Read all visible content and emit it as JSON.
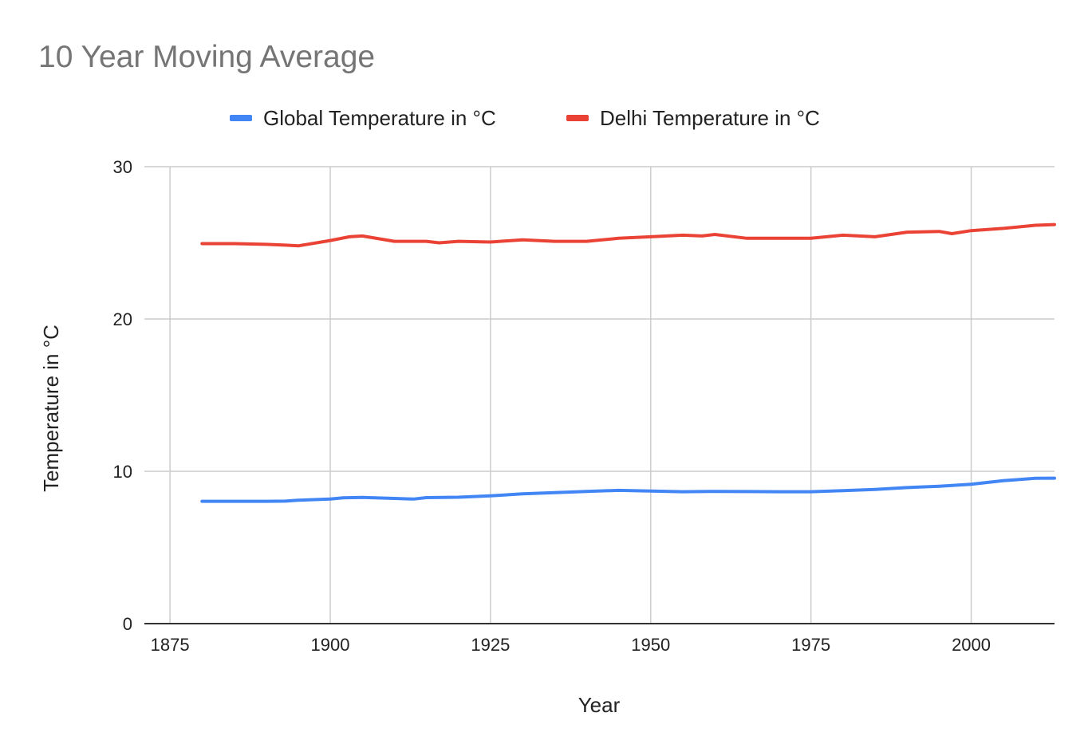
{
  "title": "10 Year Moving Average",
  "legend": {
    "items": [
      {
        "label": "Global Temperature in °C",
        "color": "#4285f4"
      },
      {
        "label": "Delhi Temperature in °C",
        "color": "#ea4335"
      }
    ]
  },
  "chart_data": {
    "type": "line",
    "title": "10 Year Moving Average",
    "xlabel": "Year",
    "ylabel": "Temperature in °C",
    "xlim": [
      1871,
      2013
    ],
    "ylim": [
      0,
      30
    ],
    "xticks": [
      1875,
      1900,
      1925,
      1950,
      1975,
      2000
    ],
    "yticks": [
      0,
      10,
      20,
      30
    ],
    "grid": true,
    "legend_position": "top",
    "series": [
      {
        "name": "Global Temperature in °C",
        "color": "#4285f4",
        "x": [
          1880,
          1885,
          1890,
          1893,
          1895,
          1900,
          1902,
          1905,
          1910,
          1913,
          1915,
          1920,
          1925,
          1930,
          1935,
          1940,
          1945,
          1950,
          1955,
          1960,
          1965,
          1970,
          1975,
          1980,
          1985,
          1990,
          1995,
          2000,
          2005,
          2010,
          2013
        ],
        "y": [
          8.03,
          8.03,
          8.03,
          8.04,
          8.1,
          8.18,
          8.26,
          8.29,
          8.22,
          8.18,
          8.27,
          8.3,
          8.39,
          8.52,
          8.6,
          8.68,
          8.75,
          8.7,
          8.66,
          8.68,
          8.67,
          8.66,
          8.66,
          8.73,
          8.81,
          8.93,
          9.02,
          9.15,
          9.38,
          9.54,
          9.55
        ]
      },
      {
        "name": "Delhi Temperature in °C",
        "color": "#ea4335",
        "x": [
          1880,
          1885,
          1890,
          1893,
          1895,
          1900,
          1903,
          1905,
          1910,
          1915,
          1917,
          1920,
          1925,
          1930,
          1935,
          1940,
          1945,
          1950,
          1955,
          1958,
          1960,
          1965,
          1970,
          1975,
          1980,
          1985,
          1990,
          1995,
          1997,
          2000,
          2005,
          2010,
          2013
        ],
        "y": [
          24.95,
          24.95,
          24.9,
          24.85,
          24.8,
          25.15,
          25.4,
          25.45,
          25.1,
          25.1,
          25.0,
          25.1,
          25.05,
          25.2,
          25.1,
          25.1,
          25.3,
          25.4,
          25.5,
          25.45,
          25.55,
          25.3,
          25.3,
          25.3,
          25.5,
          25.4,
          25.7,
          25.75,
          25.6,
          25.8,
          25.95,
          26.15,
          26.2
        ]
      }
    ]
  }
}
